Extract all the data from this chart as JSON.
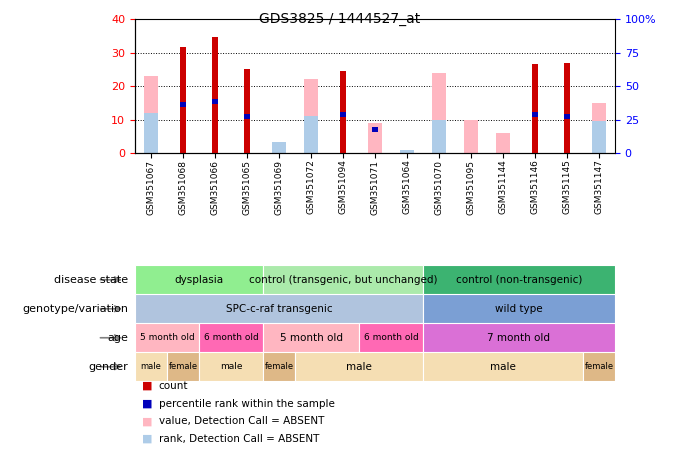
{
  "title": "GDS3825 / 1444527_at",
  "samples": [
    "GSM351067",
    "GSM351068",
    "GSM351066",
    "GSM351065",
    "GSM351069",
    "GSM351072",
    "GSM351094",
    "GSM351071",
    "GSM351064",
    "GSM351070",
    "GSM351095",
    "GSM351144",
    "GSM351146",
    "GSM351145",
    "GSM351147"
  ],
  "count_red": [
    0,
    31.5,
    34.5,
    25,
    0,
    0,
    24.5,
    0,
    0,
    0,
    0,
    0,
    26.5,
    27,
    0
  ],
  "value_pink": [
    23,
    0,
    0,
    0,
    0,
    22,
    0,
    9,
    0,
    24,
    10,
    6,
    0,
    0,
    15
  ],
  "percentile_blue": [
    0,
    14.5,
    15.5,
    11,
    0,
    0,
    11.5,
    7,
    0,
    0,
    0,
    0,
    11.5,
    11,
    0
  ],
  "rank_lightblue": [
    12,
    0,
    0,
    0,
    3.5,
    11,
    0,
    0,
    1,
    10,
    0,
    0,
    0,
    0,
    9.5
  ],
  "ylim": [
    0,
    40
  ],
  "yticks_left": [
    0,
    10,
    20,
    30,
    40
  ],
  "yticks_right": [
    0,
    25,
    50,
    75,
    100
  ],
  "disease_state_groups": [
    {
      "label": "dysplasia",
      "start": 0,
      "end": 4,
      "color": "#90EE90"
    },
    {
      "label": "control (transgenic, but unchanged)",
      "start": 4,
      "end": 9,
      "color": "#ABEAAB"
    },
    {
      "label": "control (non-transgenic)",
      "start": 9,
      "end": 15,
      "color": "#3CB371"
    }
  ],
  "genotype_groups": [
    {
      "label": "SPC-c-raf transgenic",
      "start": 0,
      "end": 9,
      "color": "#B0C4DE"
    },
    {
      "label": "wild type",
      "start": 9,
      "end": 15,
      "color": "#7B9FD4"
    }
  ],
  "age_groups": [
    {
      "label": "5 month old",
      "start": 0,
      "end": 2,
      "color": "#FFB6C1"
    },
    {
      "label": "6 month old",
      "start": 2,
      "end": 4,
      "color": "#FF69B4"
    },
    {
      "label": "5 month old",
      "start": 4,
      "end": 7,
      "color": "#FFB6C1"
    },
    {
      "label": "6 month old",
      "start": 7,
      "end": 9,
      "color": "#FF69B4"
    },
    {
      "label": "7 month old",
      "start": 9,
      "end": 15,
      "color": "#DA70D6"
    }
  ],
  "gender_groups": [
    {
      "label": "male",
      "start": 0,
      "end": 1,
      "color": "#F5DEB3"
    },
    {
      "label": "female",
      "start": 1,
      "end": 2,
      "color": "#DEB887"
    },
    {
      "label": "male",
      "start": 2,
      "end": 4,
      "color": "#F5DEB3"
    },
    {
      "label": "female",
      "start": 4,
      "end": 5,
      "color": "#DEB887"
    },
    {
      "label": "male",
      "start": 5,
      "end": 9,
      "color": "#F5DEB3"
    },
    {
      "label": "male",
      "start": 9,
      "end": 14,
      "color": "#F5DEB3"
    },
    {
      "label": "female",
      "start": 14,
      "end": 15,
      "color": "#DEB887"
    }
  ],
  "color_red": "#CC0000",
  "color_pink": "#FFB6C1",
  "color_blue": "#0000BB",
  "color_lightblue": "#AECCE8",
  "bg_color": "#FFFFFF",
  "chart_bg": "#FFFFFF"
}
